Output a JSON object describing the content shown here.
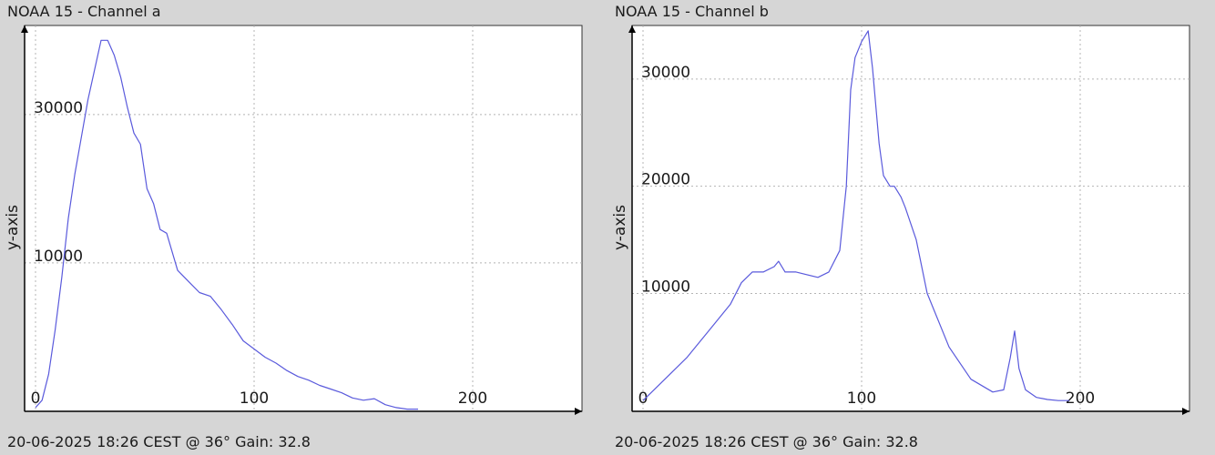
{
  "chart_data": [
    {
      "type": "line",
      "title": "NOAA 15 - Channel a",
      "footer": "20-06-2025 18:26 CEST @ 36° Gain: 32.8",
      "ylabel": "y-axis",
      "xlabel": "",
      "xlim": [
        -5,
        250
      ],
      "ylim": [
        -10000,
        42000
      ],
      "x_ticks": [
        0,
        100,
        200
      ],
      "y_ticks": [
        10000,
        30000
      ],
      "grid": true,
      "color": "#5a5adc",
      "series": [
        {
          "x": [
            0,
            3,
            6,
            9,
            12,
            15,
            18,
            21,
            24,
            27,
            30,
            33,
            36,
            39,
            42,
            45,
            48,
            51,
            54,
            57,
            60,
            65,
            70,
            75,
            80,
            85,
            90,
            95,
            100,
            105,
            110,
            115,
            120,
            125,
            130,
            135,
            140,
            145,
            150,
            155,
            160,
            165,
            170,
            175
          ],
          "y": [
            -9500,
            -8500,
            -5000,
            1000,
            8000,
            16000,
            22000,
            27000,
            32000,
            36000,
            40000,
            40000,
            38000,
            35000,
            31000,
            27500,
            26000,
            20000,
            18000,
            14500,
            14000,
            9000,
            7500,
            6000,
            5500,
            3700,
            1700,
            -500,
            -1600,
            -2700,
            -3500,
            -4500,
            -5300,
            -5800,
            -6500,
            -7000,
            -7500,
            -8200,
            -8500,
            -8300,
            -9100,
            -9500,
            -9700,
            -9700
          ]
        }
      ]
    },
    {
      "type": "line",
      "title": "NOAA 15 - Channel b",
      "footer": "20-06-2025 18:26 CEST @ 36° Gain: 32.8",
      "ylabel": "y-axis",
      "xlabel": "",
      "xlim": [
        -5,
        250
      ],
      "ylim": [
        -1000,
        35000
      ],
      "x_ticks": [
        0,
        100,
        200
      ],
      "y_ticks": [
        10000,
        20000,
        30000
      ],
      "grid": true,
      "color": "#5a5adc",
      "series": [
        {
          "x": [
            0,
            10,
            20,
            30,
            40,
            45,
            50,
            55,
            60,
            62,
            65,
            70,
            80,
            85,
            90,
            93,
            95,
            97,
            100,
            103,
            105,
            108,
            110,
            113,
            115,
            118,
            120,
            125,
            130,
            140,
            150,
            160,
            165,
            168,
            170,
            172,
            175,
            180,
            185,
            190,
            195
          ],
          "y": [
            0,
            2000,
            4000,
            6500,
            9000,
            11000,
            12000,
            12000,
            12500,
            13000,
            12000,
            12000,
            11500,
            12000,
            14000,
            20000,
            29000,
            32000,
            33500,
            34500,
            31000,
            24000,
            21000,
            20000,
            20000,
            19000,
            18000,
            15000,
            10000,
            5000,
            2000,
            800,
            1000,
            4000,
            6500,
            3000,
            1000,
            300,
            100,
            0,
            0
          ]
        }
      ]
    }
  ]
}
